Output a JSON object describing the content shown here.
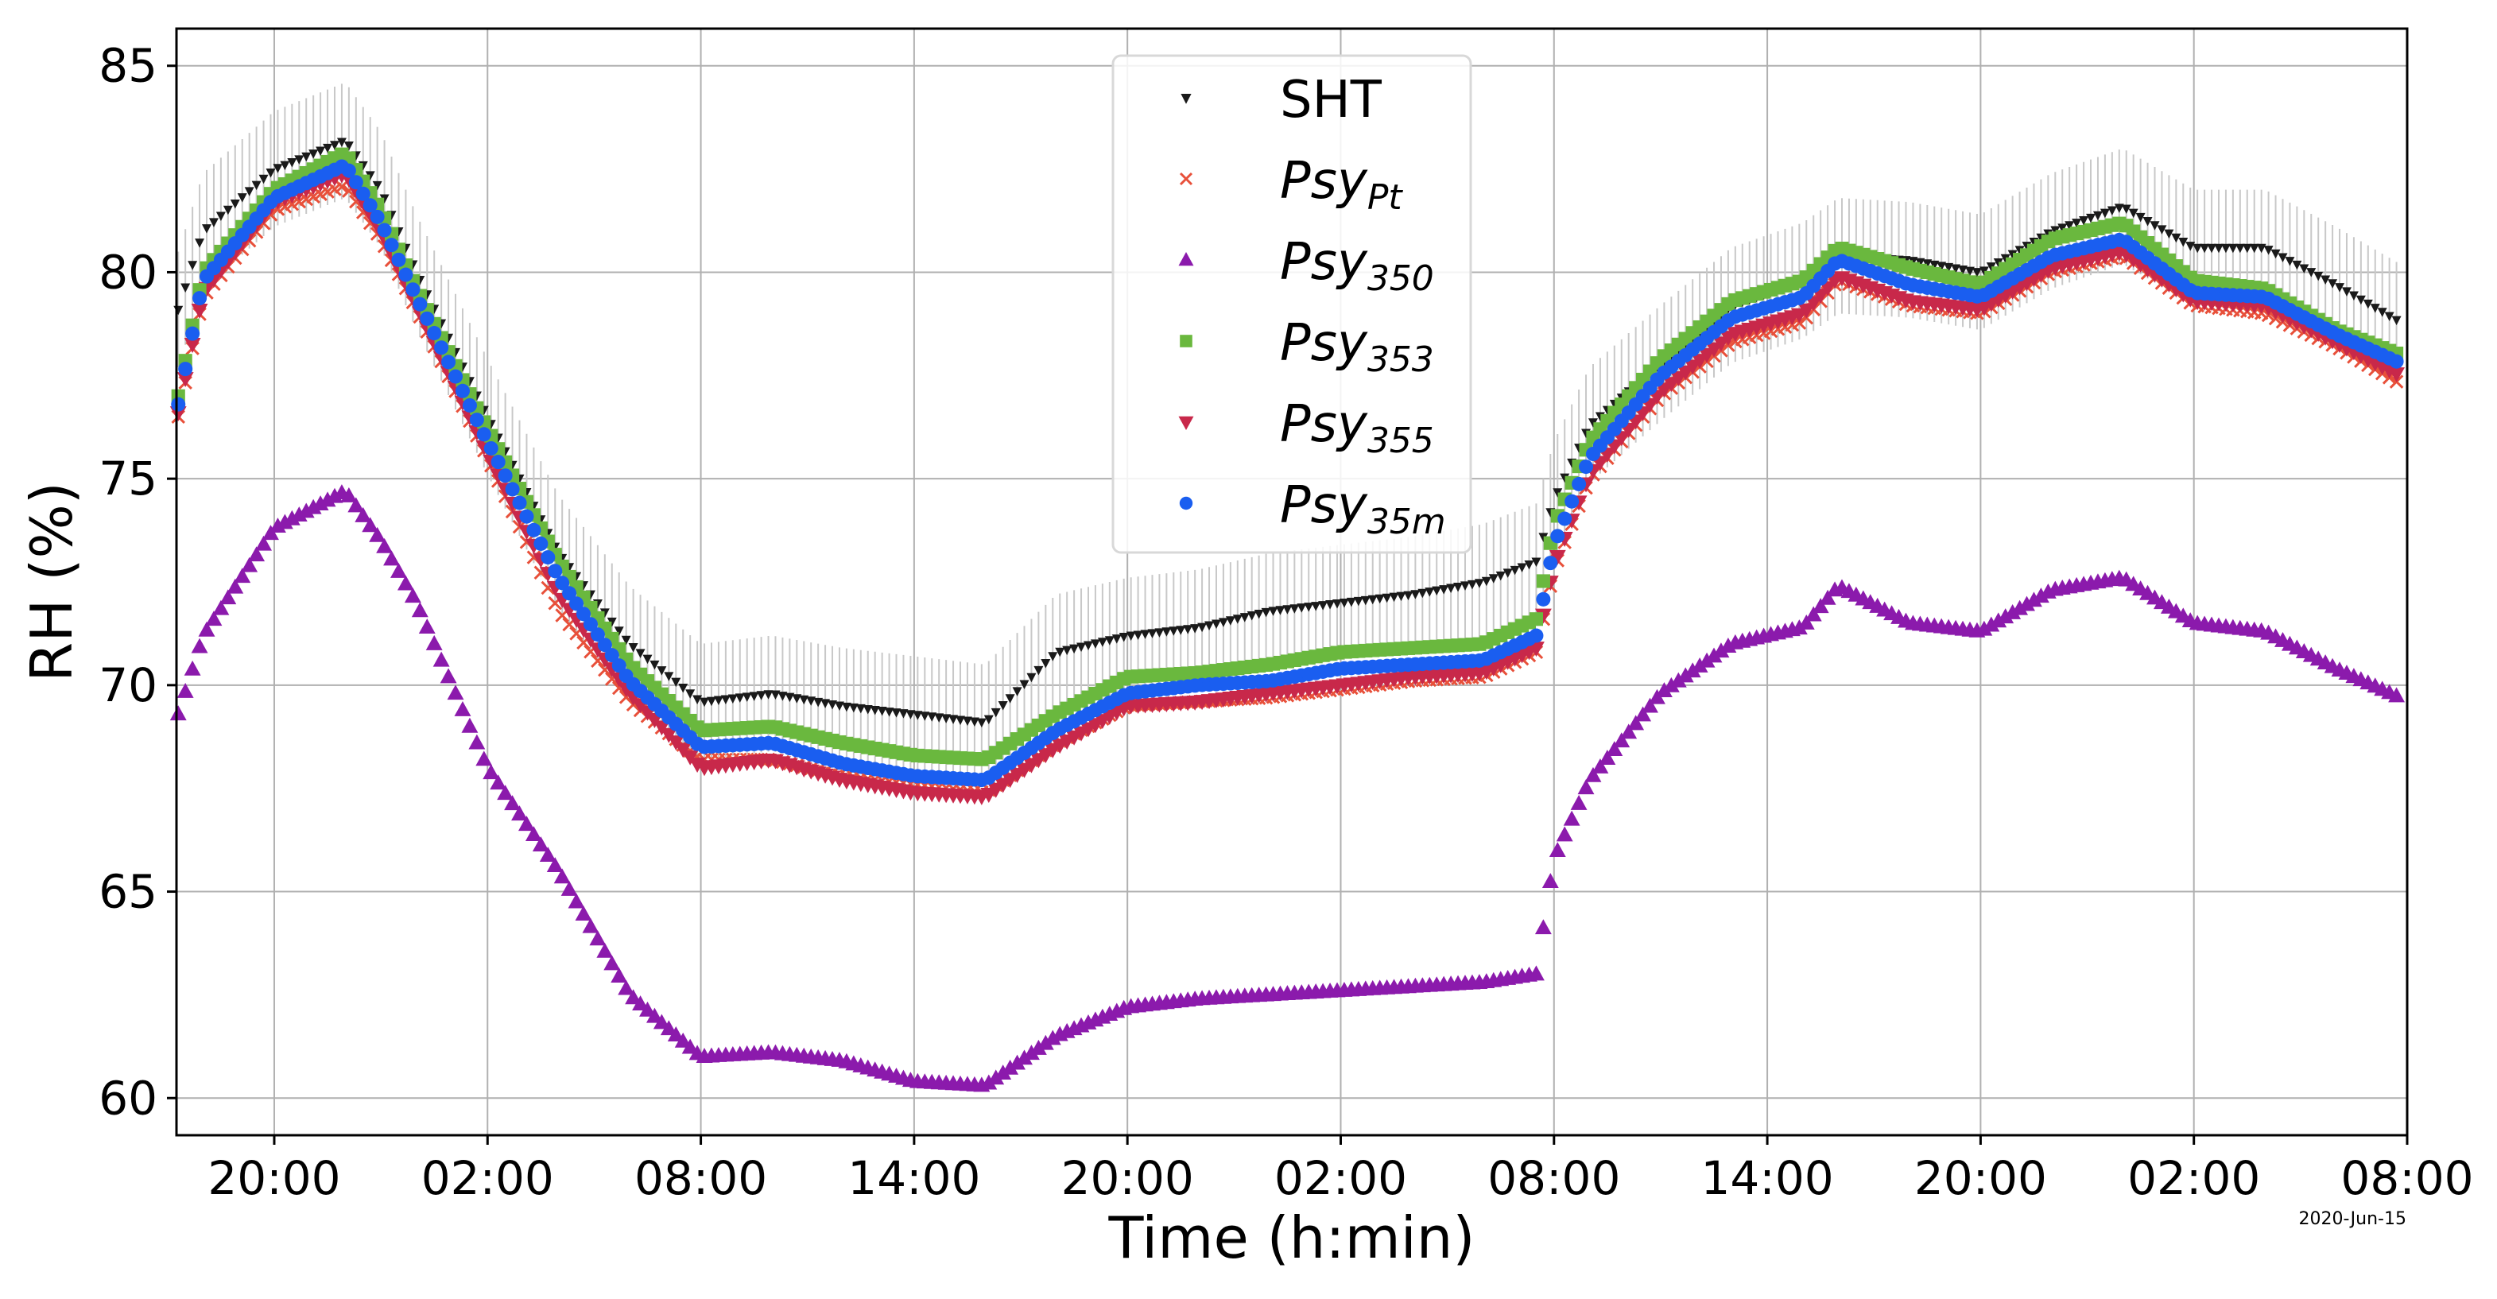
{
  "chart_data": {
    "type": "scatter",
    "xlabel": "Time (h:min)",
    "ylabel": "RH (%)",
    "date_note": "2020-Jun-15",
    "ylim": [
      59.1,
      85.9
    ],
    "yticks": [
      60,
      65,
      70,
      75,
      80,
      85
    ],
    "xticks": [
      "20:00",
      "02:00",
      "08:00",
      "14:00",
      "20:00",
      "02:00",
      "08:00",
      "14:00",
      "20:00",
      "02:00",
      "08:00"
    ],
    "x_unit": "hours elapsed since first tick (20:00)",
    "xlim": [
      -2.75,
      60.0
    ],
    "grid": true,
    "legend_position": "upper-center",
    "anchors_x": [
      -2.7,
      -2.0,
      0.0,
      2.0,
      3.0,
      4.0,
      6.0,
      8.0,
      10.0,
      12.0,
      14.0,
      16.0,
      18.0,
      20.0,
      22.0,
      24.0,
      26.0,
      28.0,
      30.0,
      32.0,
      34.0,
      35.5,
      36.0,
      37.0,
      39.0,
      41.0,
      43.0,
      44.0,
      46.0,
      48.0,
      50.0,
      52.0,
      54.0,
      56.0,
      58.0,
      59.8
    ],
    "series": [
      {
        "name": "SHT",
        "label_main": "SHT",
        "label_sub": "",
        "italic": false,
        "marker": "tri_down_small",
        "color": "#1a1a1a",
        "error_bar": 1.4,
        "values": [
          79.1,
          81.0,
          82.5,
          83.2,
          82.0,
          80.0,
          76.5,
          73.2,
          71.0,
          69.6,
          69.8,
          69.5,
          69.3,
          69.1,
          70.8,
          71.2,
          71.4,
          71.8,
          72.0,
          72.2,
          72.5,
          73.0,
          74.5,
          76.3,
          77.8,
          79.2,
          79.8,
          80.4,
          80.3,
          80.0,
          81.0,
          81.6,
          80.6,
          80.6,
          79.7,
          78.8
        ]
      },
      {
        "name": "Psy_Pt",
        "label_main": "Psy",
        "label_sub": "Pt",
        "italic": true,
        "marker": "x",
        "color": "#e8503a",
        "error_bar": 0,
        "values": [
          76.5,
          79.4,
          81.5,
          82.1,
          80.8,
          79.1,
          75.5,
          71.8,
          69.6,
          68.2,
          68.2,
          67.8,
          67.6,
          67.4,
          68.6,
          69.5,
          69.6,
          69.7,
          69.9,
          70.1,
          70.2,
          70.8,
          72.8,
          75.0,
          77.0,
          78.3,
          78.8,
          79.8,
          79.2,
          79.0,
          80.0,
          80.4,
          79.2,
          79.0,
          78.2,
          77.3
        ]
      },
      {
        "name": "Psy_350",
        "label_main": "Psy",
        "label_sub": "350",
        "italic": true,
        "marker": "triangle_up",
        "color": "#8b1aac",
        "error_bar": 0,
        "values": [
          69.3,
          71.2,
          73.8,
          74.7,
          73.5,
          72.0,
          68.0,
          65.5,
          62.5,
          61.0,
          61.1,
          60.9,
          60.4,
          60.3,
          61.5,
          62.2,
          62.4,
          62.5,
          62.6,
          62.7,
          62.8,
          63.0,
          65.8,
          67.7,
          69.8,
          71.0,
          71.4,
          72.4,
          71.5,
          71.3,
          72.3,
          72.6,
          71.5,
          71.3,
          70.4,
          69.7
        ]
      },
      {
        "name": "Psy_353",
        "label_main": "Psy",
        "label_sub": "353",
        "italic": true,
        "marker": "square",
        "color": "#6ab83e",
        "error_bar": 0,
        "values": [
          77.0,
          80.0,
          82.0,
          82.9,
          81.5,
          79.6,
          76.2,
          73.0,
          70.5,
          68.9,
          69.0,
          68.6,
          68.3,
          68.2,
          69.3,
          70.2,
          70.3,
          70.5,
          70.8,
          70.9,
          71.0,
          71.6,
          73.9,
          75.9,
          77.9,
          79.3,
          79.8,
          80.6,
          80.1,
          79.7,
          80.8,
          81.2,
          79.8,
          79.6,
          78.6,
          78.0
        ]
      },
      {
        "name": "Psy_355",
        "label_main": "Psy",
        "label_sub": "355",
        "italic": true,
        "marker": "triangle_down",
        "color": "#c8284a",
        "error_bar": 0,
        "values": [
          76.6,
          79.5,
          81.7,
          82.4,
          81.0,
          79.2,
          75.6,
          72.2,
          69.8,
          68.0,
          68.2,
          67.7,
          67.4,
          67.3,
          68.5,
          69.5,
          69.6,
          69.8,
          70.0,
          70.2,
          70.3,
          70.9,
          72.9,
          75.1,
          77.1,
          78.5,
          79.0,
          79.9,
          79.3,
          79.1,
          80.1,
          80.5,
          79.3,
          79.2,
          78.3,
          77.5
        ]
      },
      {
        "name": "Psy_35m",
        "label_main": "Psy",
        "label_sub": "35m",
        "italic": true,
        "marker": "circle",
        "color": "#1a5ef0",
        "error_bar": 0,
        "values": [
          76.8,
          79.8,
          81.8,
          82.6,
          81.2,
          79.4,
          75.9,
          72.6,
          70.1,
          68.5,
          68.6,
          68.1,
          67.8,
          67.7,
          68.9,
          69.8,
          70.0,
          70.1,
          70.4,
          70.5,
          70.6,
          71.2,
          73.4,
          75.5,
          77.5,
          78.9,
          79.4,
          80.3,
          79.7,
          79.4,
          80.4,
          80.8,
          79.5,
          79.4,
          78.5,
          77.8
        ]
      }
    ]
  }
}
